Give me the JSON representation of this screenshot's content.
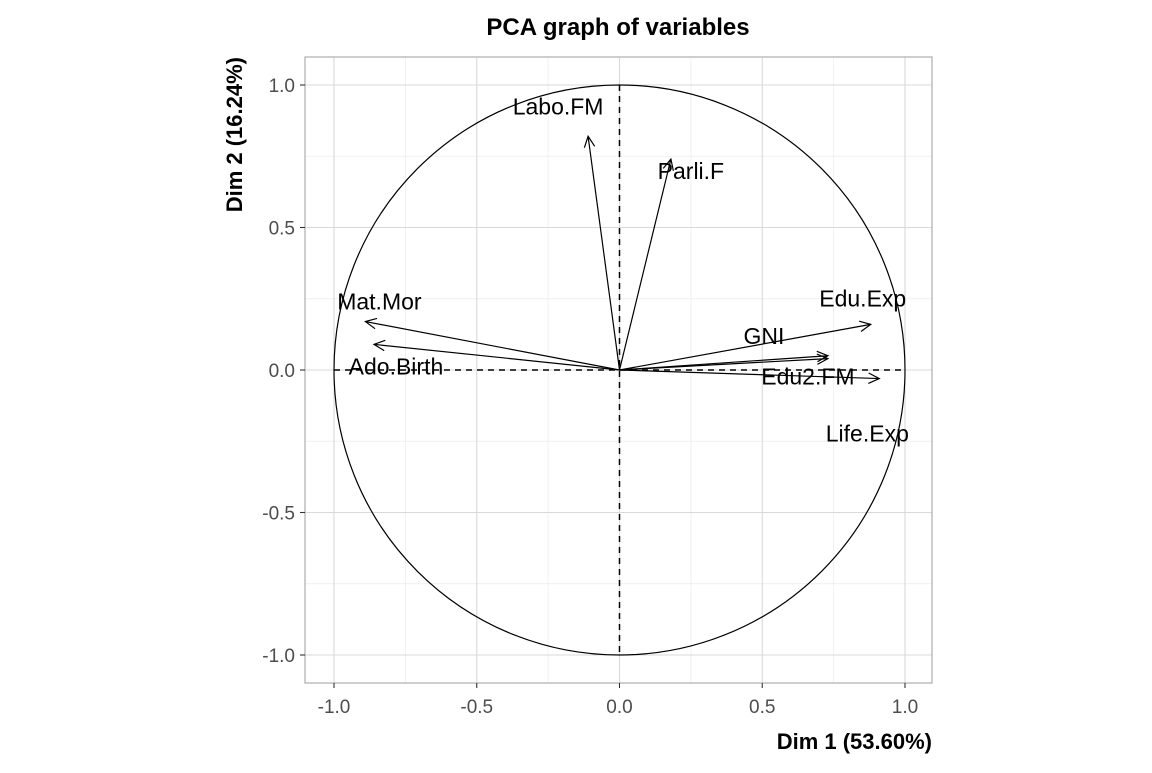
{
  "chart_data": {
    "type": "scatter",
    "subtype": "pca-correlation-circle",
    "title": "PCA graph of variables",
    "xlabel": "Dim 1 (53.60%)",
    "ylabel": "Dim 2 (16.24%)",
    "xlim": [
      -1.1,
      1.1
    ],
    "ylim": [
      -1.1,
      1.1
    ],
    "x_ticks": [
      -1.0,
      -0.5,
      0.0,
      0.5,
      1.0
    ],
    "x_tick_labels": [
      "-1.0",
      "-0.5",
      "0.0",
      "0.5",
      "1.0"
    ],
    "y_ticks": [
      -1.0,
      -0.5,
      0.0,
      0.5,
      1.0
    ],
    "y_tick_labels": [
      "-1.0",
      "-0.5",
      "0.0",
      "0.5",
      "1.0"
    ],
    "grid": true,
    "unit_circle": true,
    "variables": [
      {
        "name": "Labo.FM",
        "x": -0.11,
        "y": 0.82
      },
      {
        "name": "Parli.F",
        "x": 0.18,
        "y": 0.74
      },
      {
        "name": "Edu.Exp",
        "x": 0.88,
        "y": 0.16
      },
      {
        "name": "GNI",
        "x": 0.73,
        "y": 0.05
      },
      {
        "name": "Edu2.FM",
        "x": 0.73,
        "y": 0.04
      },
      {
        "name": "Life.Exp",
        "x": 0.91,
        "y": -0.03
      },
      {
        "name": "Mat.Mor",
        "x": -0.89,
        "y": 0.17
      },
      {
        "name": "Ado.Birth",
        "x": -0.86,
        "y": 0.09
      }
    ]
  }
}
